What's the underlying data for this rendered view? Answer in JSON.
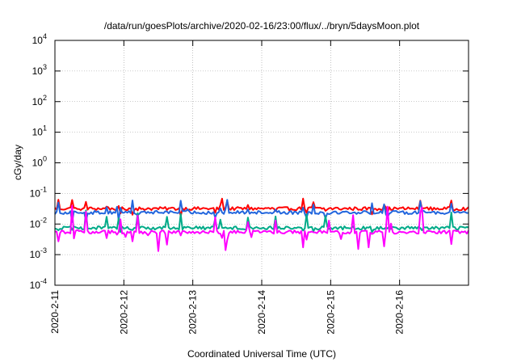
{
  "chart_data": {
    "type": "line",
    "title": "/data/run/goesPlots/archive/2020-02-16/23:00/flux/../bryn/5daysMoon.plot",
    "xlabel": "Coordinated Universal Time (UTC)",
    "ylabel": "cGy/day",
    "y_scale": "log",
    "ylim": [
      0.0001,
      10000
    ],
    "xlim": [
      "2020-02-11",
      "2020-02-17"
    ],
    "grid": true,
    "legend": "none",
    "x_ticks": [
      "2020-2-11",
      "2020-2-12",
      "2020-2-13",
      "2020-2-14",
      "2020-2-15",
      "2020-2-16"
    ],
    "y_ticks": [
      {
        "base": "10",
        "exp": "-4"
      },
      {
        "base": "10",
        "exp": "-3"
      },
      {
        "base": "10",
        "exp": "-2"
      },
      {
        "base": "10",
        "exp": "-1"
      },
      {
        "base": "10",
        "exp": "0"
      },
      {
        "base": "10",
        "exp": "1"
      },
      {
        "base": "10",
        "exp": "2"
      },
      {
        "base": "10",
        "exp": "3"
      },
      {
        "base": "10",
        "exp": "4"
      }
    ],
    "series": [
      {
        "color": "#ff0000",
        "baseline": 0.032,
        "spike_max": 0.07,
        "dip_min": 0.018,
        "spikiness": 0.35
      },
      {
        "color": "#2266dd",
        "baseline": 0.024,
        "spike_max": 0.065,
        "dip_min": 0.009,
        "spikiness": 0.45
      },
      {
        "color": "#00aa88",
        "baseline": 0.0075,
        "spike_max": 0.03,
        "dip_min": 0.005,
        "spikiness": 0.4
      },
      {
        "color": "#ff00ff",
        "baseline": 0.0055,
        "spike_max": 0.04,
        "dip_min": 0.0013,
        "spikiness": 0.55
      }
    ]
  }
}
